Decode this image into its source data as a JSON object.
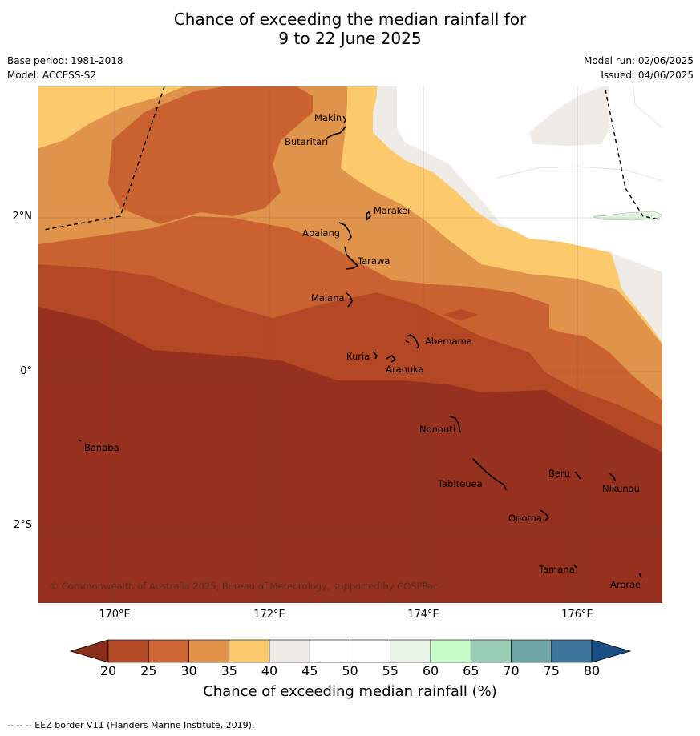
{
  "title_line1": "Chance of exceeding the median rainfall for",
  "title_line2": "9 to 22 June 2025",
  "meta": {
    "base_period": "Base period: 1981-2018",
    "model": "Model: ACCESS-S2",
    "model_run": "Model run: 02/06/2025",
    "issued": "Issued: 04/06/2025"
  },
  "map": {
    "lat_labels": [
      "2°N",
      "0°",
      "2°S"
    ],
    "lon_labels": [
      "170°E",
      "172°E",
      "174°E",
      "176°E"
    ],
    "places": [
      "Makin",
      "Butaritari",
      "Marakei",
      "Abaiang",
      "Tarawa",
      "Maiana",
      "Abemama",
      "Kuria",
      "Aranuka",
      "Nonouti",
      "Banaba",
      "Beru",
      "Nikunau",
      "Tabiteuea",
      "Onotoa",
      "Tamana",
      "Arorae"
    ],
    "copyright": "© Commonwealth of Australia 2025, Bureau of Meteorology, supported by COSPPac"
  },
  "colorbar": {
    "ticks": [
      "20",
      "25",
      "30",
      "35",
      "40",
      "45",
      "50",
      "55",
      "60",
      "65",
      "70",
      "75",
      "80"
    ],
    "colors": [
      "#8a2e1a",
      "#b34a26",
      "#cd6535",
      "#e2944a",
      "#fcc96c",
      "#efebe7",
      "#ffffff",
      "#ffffff",
      "#eaf5ea",
      "#c6fcc6",
      "#9acdb6",
      "#70a6a6",
      "#3d769b",
      "#1a4f86"
    ],
    "label": "Chance of exceeding median rainfall (%)"
  },
  "footnote": "-- -- -- EEZ border V11 (Flanders Marine Institute, 2019)."
}
